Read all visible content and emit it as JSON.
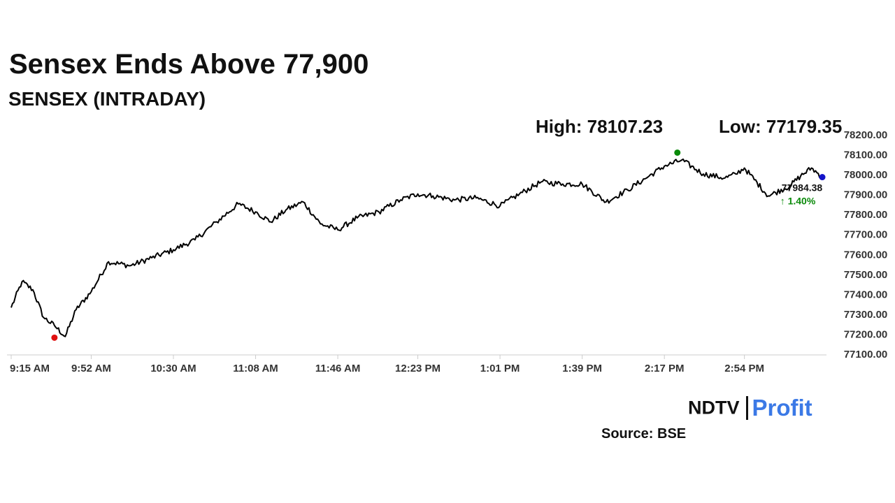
{
  "header": {
    "title": "Sensex Ends Above 77,900",
    "subtitle": "SENSEX (INTRADAY)",
    "high_text": "High: 78107.23",
    "low_text": "Low: 77179.35"
  },
  "footer": {
    "brand_left": "NDTV",
    "brand_right": "Profit",
    "source": "Source: BSE"
  },
  "colors": {
    "line": "#000000",
    "high_marker": "#0a8a0a",
    "low_marker": "#e01010",
    "last_marker": "#1414c8",
    "change_positive": "#0a8a0a",
    "brand_profit": "#3b79e6",
    "axis": "#cccccc"
  },
  "chart_data": {
    "type": "line",
    "title": "SENSEX (INTRADAY)",
    "xlabel": "",
    "ylabel": "",
    "ylim": [
      77100,
      78200
    ],
    "y_ticks": [
      "77100.00",
      "77200.00",
      "77300.00",
      "77400.00",
      "77500.00",
      "77600.00",
      "77700.00",
      "77800.00",
      "77900.00",
      "78000.00",
      "78100.00",
      "78200.00"
    ],
    "x_ticks": [
      "9:15 AM",
      "9:52 AM",
      "10:30 AM",
      "11:08 AM",
      "11:46 AM",
      "12:23 PM",
      "1:01 PM",
      "1:39 PM",
      "2:17 PM",
      "2:54 PM"
    ],
    "grid": false,
    "series": [
      {
        "x": [
          "9:15 AM",
          "9:20 AM",
          "9:25 AM",
          "9:30 AM",
          "9:35 AM",
          "9:40 AM",
          "9:45 AM",
          "9:52 AM",
          "10:00 AM",
          "10:10 AM",
          "10:20 AM",
          "10:30 AM",
          "10:40 AM",
          "10:50 AM",
          "11:00 AM",
          "11:08 AM",
          "11:15 AM",
          "11:22 AM",
          "11:30 AM",
          "11:38 AM",
          "11:46 AM",
          "11:55 AM",
          "12:05 PM",
          "12:15 PM",
          "12:23 PM",
          "12:30 PM",
          "12:40 PM",
          "12:50 PM",
          "1:01 PM",
          "1:10 PM",
          "1:20 PM",
          "1:30 PM",
          "1:39 PM",
          "1:50 PM",
          "2:00 PM",
          "2:10 PM",
          "2:17 PM",
          "2:25 PM",
          "2:35 PM",
          "2:45 PM",
          "2:50 PM",
          "2:54 PM",
          "3:05 PM",
          "3:15 PM",
          "3:20 PM",
          "3:25 PM",
          "3:30 PM"
        ],
        "values": [
          77330,
          77460,
          77420,
          77280,
          77240,
          77185,
          77320,
          77410,
          77560,
          77540,
          77580,
          77620,
          77670,
          77760,
          77850,
          77810,
          77760,
          77820,
          77860,
          77750,
          77720,
          77780,
          77810,
          77870,
          77900,
          77890,
          77870,
          77880,
          77840,
          77900,
          77960,
          77950,
          77950,
          77860,
          77920,
          77990,
          78040,
          78070,
          78000,
          77980,
          78000,
          78030,
          77890,
          77940,
          77990,
          78030,
          77984.38
        ]
      }
    ],
    "high": {
      "time": "2:23 PM",
      "value": 78107.23
    },
    "low": {
      "time": "9:35 AM",
      "value": 77179.35
    },
    "last": {
      "value": 77984.38,
      "label": "77984.38",
      "change": "↑ 1.40%"
    }
  }
}
